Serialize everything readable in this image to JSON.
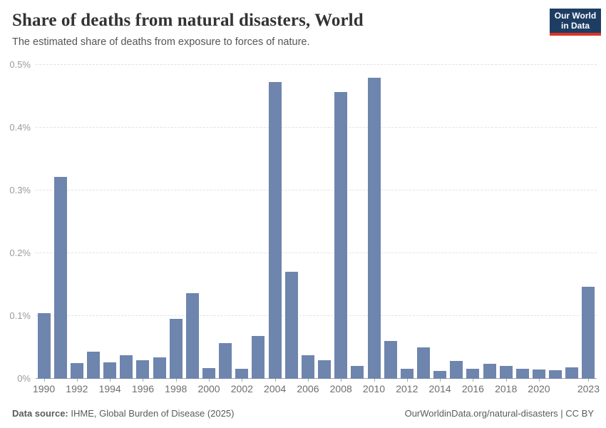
{
  "header": {
    "title": "Share of deaths from natural disasters, World",
    "subtitle": "The estimated share of deaths from exposure to forces of nature.",
    "logo": {
      "line1": "Our World",
      "line2": "in Data"
    }
  },
  "footer": {
    "source_label": "Data source:",
    "source_text": " IHME, Global Burden of Disease (2025)",
    "credit": "OurWorldinData.org/natural-disasters | CC BY"
  },
  "colors": {
    "bar": "#6e85ad",
    "grid": "#e2e2e2",
    "axis": "#a1a1a1",
    "logo_bg": "#1d3d63",
    "logo_red": "#dc3426"
  },
  "chart_data": {
    "type": "bar",
    "title": "Share of deaths from natural disasters, World",
    "xlabel": "",
    "ylabel": "",
    "unit": "%",
    "ylim": [
      0,
      0.5
    ],
    "grid": "horizontal-dashed",
    "legend": "none",
    "y_ticks": [
      0,
      0.1,
      0.2,
      0.3,
      0.4,
      0.5
    ],
    "y_tick_labels": [
      "0%",
      "0.1%",
      "0.2%",
      "0.3%",
      "0.4%",
      "0.5%"
    ],
    "x_labeled_ticks": [
      1990,
      1992,
      1994,
      1996,
      1998,
      2000,
      2002,
      2004,
      2006,
      2008,
      2010,
      2012,
      2014,
      2016,
      2018,
      2020,
      2023
    ],
    "categories": [
      1990,
      1991,
      1992,
      1993,
      1994,
      1995,
      1996,
      1997,
      1998,
      1999,
      2000,
      2001,
      2002,
      2003,
      2004,
      2005,
      2006,
      2007,
      2008,
      2009,
      2010,
      2011,
      2012,
      2013,
      2014,
      2015,
      2016,
      2017,
      2018,
      2019,
      2020,
      2021,
      2022,
      2023
    ],
    "values": [
      0.104,
      0.322,
      0.025,
      0.043,
      0.026,
      0.038,
      0.029,
      0.034,
      0.095,
      0.136,
      0.017,
      0.057,
      0.016,
      0.068,
      0.473,
      0.17,
      0.038,
      0.03,
      0.457,
      0.02,
      0.48,
      0.06,
      0.016,
      0.05,
      0.013,
      0.028,
      0.016,
      0.024,
      0.02,
      0.016,
      0.015,
      0.014,
      0.018,
      0.147
    ]
  }
}
